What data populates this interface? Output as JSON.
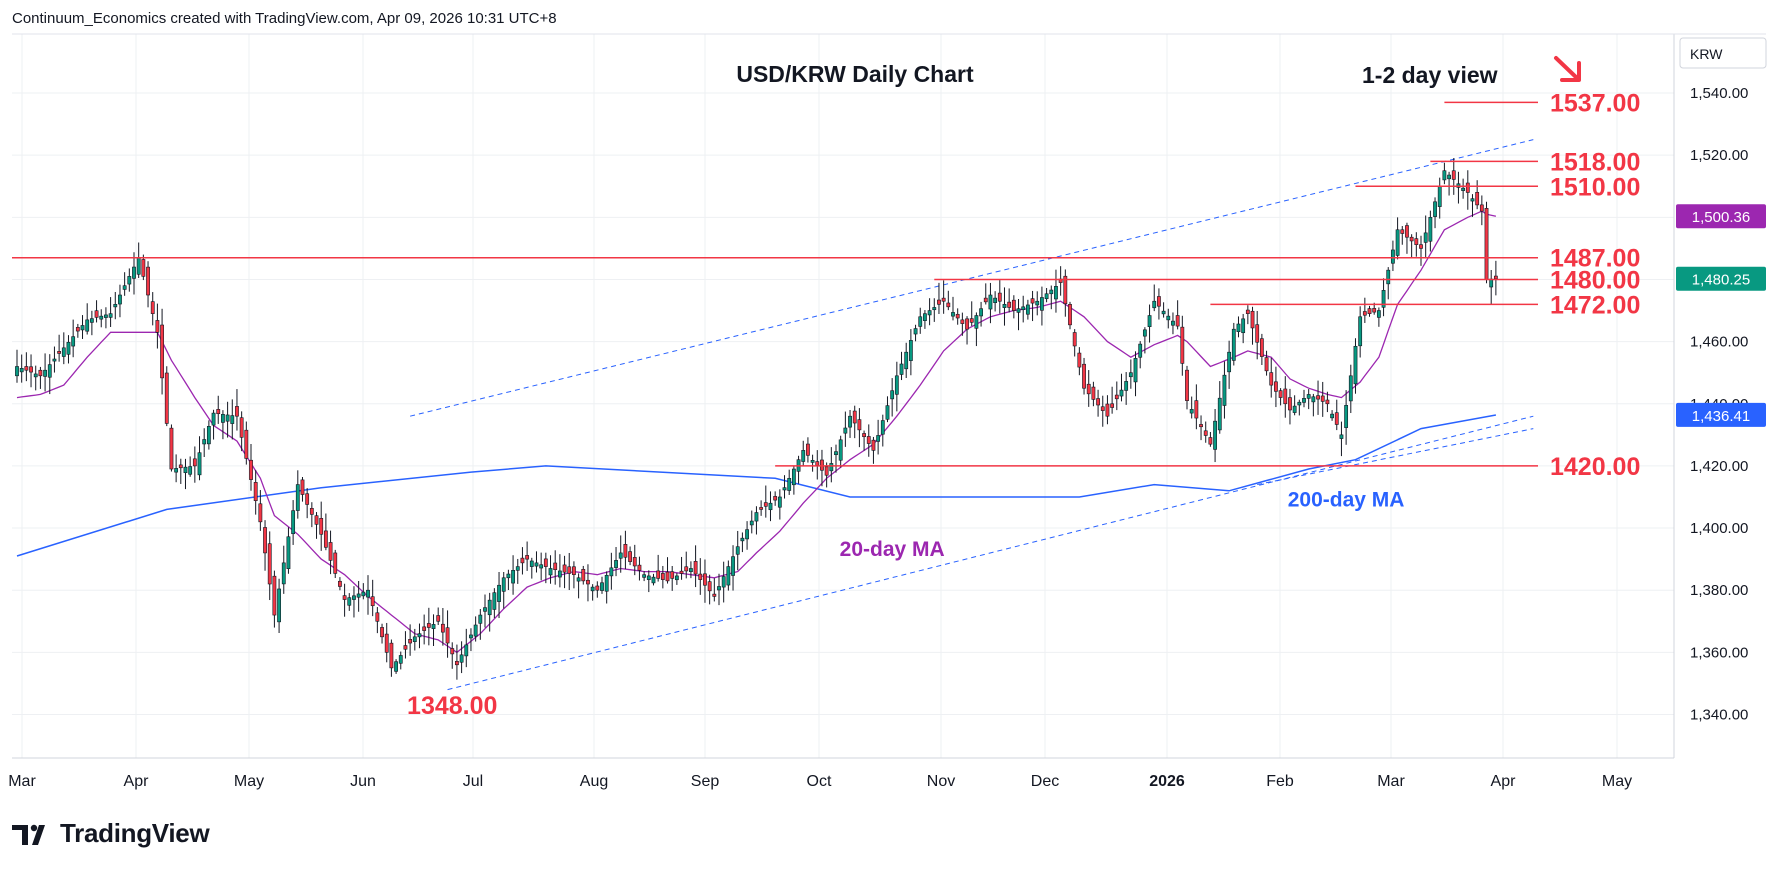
{
  "header": {
    "credit": "Continuum_Economics created with TradingView.com, Apr 09, 2026 10:31 UTC+8"
  },
  "footer": {
    "brand": "TradingView",
    "logo_icon": "tradingview-logo-icon"
  },
  "colors": {
    "up": "#089981",
    "down": "#f23645",
    "level": "#f23645",
    "ma20": "#9c27b0",
    "ma200": "#2962ff",
    "channel": "#2962ff",
    "arrow": "#f23645",
    "grid": "#eef0f3"
  },
  "chart_data": {
    "type": "candlestick",
    "title": "USD/KRW Daily Chart",
    "view_label": "1-2 day view",
    "view_direction": "down",
    "currency_label": "KRW",
    "ylim": [
      1326,
      1559
    ],
    "y_ticks": [
      1340,
      1360,
      1380,
      1400,
      1420,
      1440,
      1460,
      1480,
      1500,
      1520,
      1540
    ],
    "y_tick_labels": [
      "1,340.00",
      "1,360.00",
      "1,380.00",
      "1,400.00",
      "1,420.00",
      "1,440.00",
      "1,460.00",
      "1,480.00",
      "1,500.00",
      "1,520.00",
      "1,540.00"
    ],
    "x_labels": [
      "Mar",
      "Apr",
      "May",
      "Jun",
      "Jul",
      "Aug",
      "Sep",
      "Oct",
      "Nov",
      "Dec",
      "2026",
      "Feb",
      "Mar",
      "Apr",
      "May"
    ],
    "x_label_bold": [
      false,
      false,
      false,
      false,
      false,
      false,
      false,
      false,
      false,
      false,
      true,
      false,
      false,
      false,
      false
    ],
    "price_badges": [
      {
        "label": "1,500.36",
        "value": 1500.36,
        "color": "#9c27b0"
      },
      {
        "label": "1,480.25",
        "value": 1480.25,
        "color": "#089981"
      },
      {
        "label": "1,436.41",
        "value": 1436.41,
        "color": "#2962ff"
      }
    ],
    "levels": [
      {
        "label": "1537.00",
        "value": 1537,
        "from": 305,
        "to": 325
      },
      {
        "label": "1518.00",
        "value": 1518,
        "from": 302,
        "to": 325
      },
      {
        "label": "1510.00",
        "value": 1510,
        "from": 286,
        "to": 325
      },
      {
        "label": "1487.00",
        "value": 1487,
        "from": 0,
        "to": 325
      },
      {
        "label": "1480.00",
        "value": 1480,
        "from": 196,
        "to": 325
      },
      {
        "label": "1472.00",
        "value": 1472,
        "from": 255,
        "to": 325
      },
      {
        "label": "1420.00",
        "value": 1420,
        "from": 162,
        "to": 325
      }
    ],
    "support_label": {
      "text": "1348.00",
      "x": 93,
      "y": 1343
    },
    "ma_labels": [
      {
        "text": "20-day MA",
        "x": 187,
        "y": 1391,
        "color": "#9c27b0"
      },
      {
        "text": "200-day MA",
        "x": 284,
        "y": 1407,
        "color": "#2962ff"
      }
    ],
    "channel_upper": [
      [
        84,
        1436
      ],
      [
        324,
        1525
      ]
    ],
    "channel_lower": [
      [
        92,
        1348
      ],
      [
        324,
        1436
      ]
    ],
    "channel_lower_2": [
      [
        265,
        1414
      ],
      [
        324,
        1432
      ]
    ],
    "ma200": [
      [
        0,
        1391
      ],
      [
        32,
        1406
      ],
      [
        65,
        1413
      ],
      [
        97,
        1418
      ],
      [
        113,
        1420
      ],
      [
        162,
        1416
      ],
      [
        178,
        1410
      ],
      [
        227,
        1410
      ],
      [
        243,
        1414
      ],
      [
        259,
        1412
      ],
      [
        276,
        1419
      ],
      [
        286,
        1422
      ],
      [
        300,
        1432
      ],
      [
        316,
        1436.4
      ]
    ],
    "ohlc_anchors": [
      [
        0,
        1452
      ],
      [
        5,
        1449
      ],
      [
        10,
        1458
      ],
      [
        15,
        1467
      ],
      [
        20,
        1469
      ],
      [
        26,
        1487
      ],
      [
        30,
        1463
      ],
      [
        33,
        1419
      ],
      [
        38,
        1420
      ],
      [
        42,
        1437
      ],
      [
        47,
        1436
      ],
      [
        52,
        1402
      ],
      [
        55,
        1372
      ],
      [
        60,
        1414
      ],
      [
        65,
        1398
      ],
      [
        70,
        1377
      ],
      [
        75,
        1380
      ],
      [
        80,
        1355
      ],
      [
        85,
        1365
      ],
      [
        90,
        1370
      ],
      [
        94,
        1356
      ],
      [
        99,
        1372
      ],
      [
        104,
        1384
      ],
      [
        109,
        1390
      ],
      [
        114,
        1387
      ],
      [
        119,
        1385
      ],
      [
        124,
        1380
      ],
      [
        129,
        1392
      ],
      [
        134,
        1385
      ],
      [
        139,
        1383
      ],
      [
        144,
        1387
      ],
      [
        149,
        1378
      ],
      [
        154,
        1394
      ],
      [
        158,
        1405
      ],
      [
        163,
        1410
      ],
      [
        168,
        1425
      ],
      [
        173,
        1417
      ],
      [
        178,
        1436
      ],
      [
        183,
        1425
      ],
      [
        188,
        1449
      ],
      [
        193,
        1468
      ],
      [
        198,
        1473
      ],
      [
        203,
        1464
      ],
      [
        208,
        1475
      ],
      [
        213,
        1470
      ],
      [
        218,
        1473
      ],
      [
        223,
        1479
      ],
      [
        228,
        1445
      ],
      [
        233,
        1436
      ],
      [
        238,
        1450
      ],
      [
        243,
        1473
      ],
      [
        248,
        1465
      ],
      [
        250,
        1441
      ],
      [
        255,
        1427
      ],
      [
        260,
        1464
      ],
      [
        263,
        1469
      ],
      [
        268,
        1446
      ],
      [
        272,
        1438
      ],
      [
        276,
        1443
      ],
      [
        280,
        1440
      ],
      [
        283,
        1430
      ],
      [
        287,
        1468
      ],
      [
        291,
        1470
      ],
      [
        295,
        1496
      ],
      [
        300,
        1490
      ],
      [
        305,
        1515
      ],
      [
        310,
        1508
      ],
      [
        313,
        1502
      ],
      [
        314,
        1480
      ],
      [
        316,
        1480.25
      ]
    ],
    "ma20_anchors": [
      [
        0,
        1442
      ],
      [
        5,
        1443
      ],
      [
        10,
        1446
      ],
      [
        15,
        1455
      ],
      [
        20,
        1463
      ],
      [
        26,
        1463
      ],
      [
        30,
        1463
      ],
      [
        33,
        1454
      ],
      [
        38,
        1442
      ],
      [
        42,
        1433
      ],
      [
        47,
        1428
      ],
      [
        52,
        1416
      ],
      [
        55,
        1404
      ],
      [
        60,
        1398
      ],
      [
        65,
        1390
      ],
      [
        70,
        1385
      ],
      [
        75,
        1378
      ],
      [
        80,
        1372
      ],
      [
        85,
        1366
      ],
      [
        90,
        1364
      ],
      [
        94,
        1360
      ],
      [
        99,
        1366
      ],
      [
        104,
        1374
      ],
      [
        109,
        1381
      ],
      [
        114,
        1384
      ],
      [
        119,
        1386
      ],
      [
        124,
        1385
      ],
      [
        129,
        1387
      ],
      [
        134,
        1386
      ],
      [
        139,
        1386
      ],
      [
        144,
        1385
      ],
      [
        149,
        1384
      ],
      [
        154,
        1386
      ],
      [
        158,
        1392
      ],
      [
        163,
        1399
      ],
      [
        168,
        1408
      ],
      [
        173,
        1416
      ],
      [
        178,
        1422
      ],
      [
        183,
        1427
      ],
      [
        188,
        1436
      ],
      [
        193,
        1446
      ],
      [
        198,
        1457
      ],
      [
        203,
        1464
      ],
      [
        208,
        1468
      ],
      [
        213,
        1470
      ],
      [
        218,
        1471
      ],
      [
        223,
        1473
      ],
      [
        228,
        1468
      ],
      [
        233,
        1460
      ],
      [
        238,
        1455
      ],
      [
        243,
        1459
      ],
      [
        248,
        1462
      ],
      [
        250,
        1460
      ],
      [
        255,
        1452
      ],
      [
        260,
        1455
      ],
      [
        263,
        1457
      ],
      [
        268,
        1455
      ],
      [
        272,
        1448
      ],
      [
        276,
        1445
      ],
      [
        280,
        1443
      ],
      [
        283,
        1442
      ],
      [
        287,
        1447
      ],
      [
        291,
        1455
      ],
      [
        295,
        1472
      ],
      [
        300,
        1483
      ],
      [
        305,
        1496
      ],
      [
        310,
        1500
      ],
      [
        313,
        1502
      ],
      [
        314,
        1501
      ],
      [
        316,
        1500.36
      ]
    ],
    "candle_count": 317
  }
}
